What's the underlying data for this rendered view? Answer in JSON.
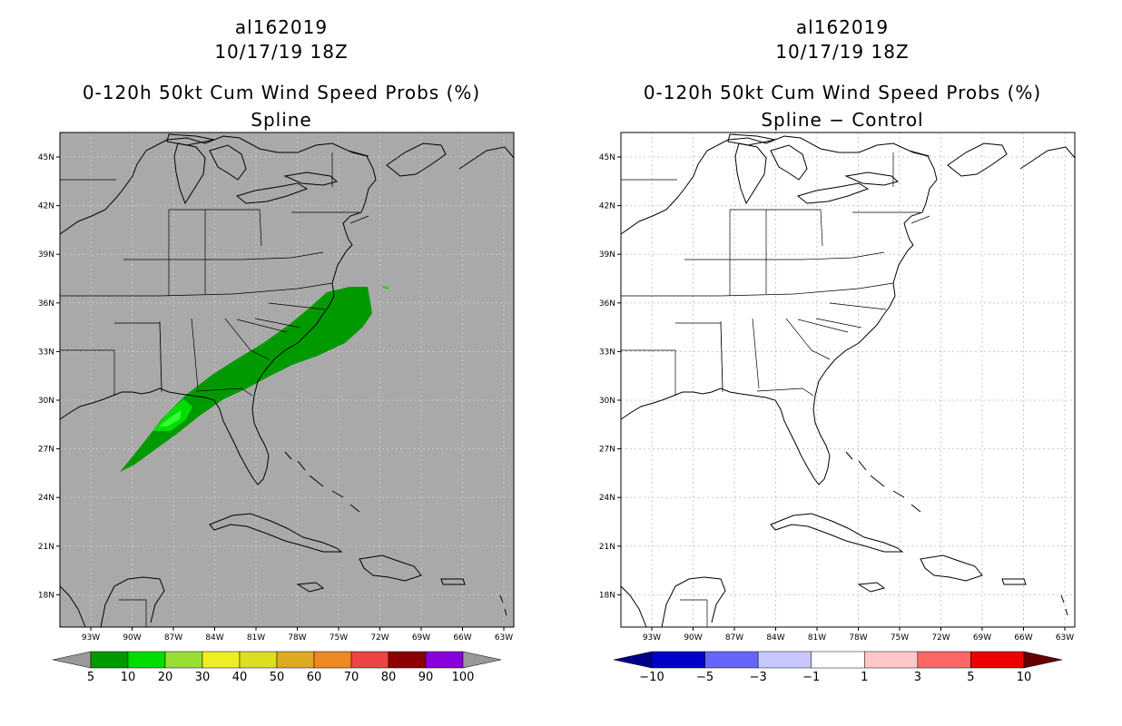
{
  "panels": [
    {
      "id": "left",
      "storm_id": "al162019",
      "datetime": "10/17/19 18Z",
      "product": "0-120h 50kt Cum Wind Speed Probs (%)",
      "subtitle": "Spline",
      "background_color": "#a9a9a9",
      "lat_labels": [
        "45N",
        "42N",
        "39N",
        "36N",
        "33N",
        "30N",
        "27N",
        "24N",
        "21N",
        "18N"
      ],
      "lon_labels": [
        "93W",
        "90W",
        "87W",
        "84W",
        "81W",
        "78W",
        "75W",
        "72W",
        "69W",
        "66W",
        "63W"
      ],
      "colorbar": {
        "labels": [
          "5",
          "10",
          "20",
          "30",
          "40",
          "50",
          "60",
          "70",
          "80",
          "90",
          "100"
        ],
        "colors": [
          "#009900",
          "#00dd00",
          "#99dd33",
          "#eeee22",
          "#dddd22",
          "#ddaa22",
          "#ee8822",
          "#ee4444",
          "#8b0000",
          "#8800dd"
        ],
        "under_color": "#999999",
        "over_color": "#999999"
      },
      "probability_swath": {
        "outer_color": "#009900",
        "inner_color": "#00dd00",
        "core_color": "#33ff33"
      }
    },
    {
      "id": "right",
      "storm_id": "al162019",
      "datetime": "10/17/19 18Z",
      "product": "0-120h 50kt Cum Wind Speed Probs (%)",
      "subtitle": "Spline − Control",
      "background_color": "#ffffff",
      "lat_labels": [
        "45N",
        "42N",
        "39N",
        "36N",
        "33N",
        "30N",
        "27N",
        "24N",
        "21N",
        "18N"
      ],
      "lon_labels": [
        "93W",
        "90W",
        "87W",
        "84W",
        "81W",
        "78W",
        "75W",
        "72W",
        "69W",
        "66W",
        "63W"
      ],
      "colorbar": {
        "labels": [
          "−10",
          "−5",
          "−3",
          "−1",
          "1",
          "3",
          "5",
          "10"
        ],
        "colors": [
          "#0000cc",
          "#6666ff",
          "#c8c8ff",
          "#ffffff",
          "#ffc8c8",
          "#ff6666",
          "#ee0000"
        ],
        "under_color": "#000088",
        "over_color": "#660000"
      }
    }
  ]
}
